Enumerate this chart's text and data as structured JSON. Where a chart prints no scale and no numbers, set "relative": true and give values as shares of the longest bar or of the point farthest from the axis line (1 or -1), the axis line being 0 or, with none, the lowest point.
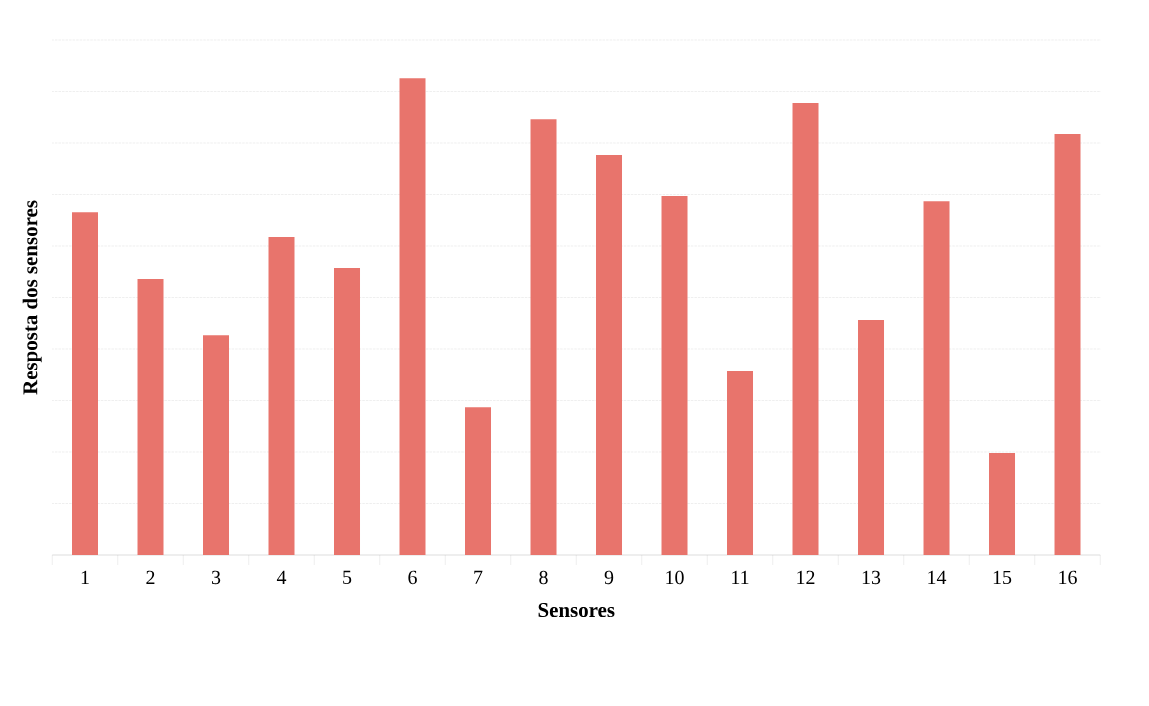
{
  "chart_data": {
    "type": "bar",
    "relative": true,
    "xlabel": "Sensores",
    "ylabel": "Resposta dos sensores",
    "categories": [
      "1",
      "2",
      "3",
      "4",
      "5",
      "6",
      "7",
      "8",
      "9",
      "10",
      "11",
      "12",
      "13",
      "14",
      "15",
      "16"
    ],
    "values": [
      0.719,
      0.579,
      0.461,
      0.667,
      0.602,
      1,
      0.31,
      0.914,
      0.839,
      0.753,
      0.386,
      0.948,
      0.493,
      0.742,
      0.214,
      0.883
    ],
    "color": "#e8746c",
    "grid": "y"
  }
}
